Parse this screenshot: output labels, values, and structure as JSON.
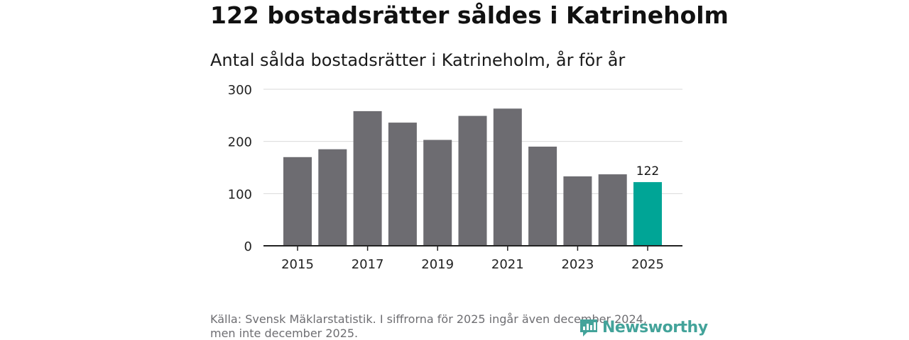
{
  "header": {
    "title": "122 bostadsrätter såldes i Katrineholm",
    "subtitle": "Antal sålda bostadsrätter i Katrineholm, år för år"
  },
  "footer": {
    "source_line1": "Källa: Svensk Mäklarstatistik. I siffrorna för 2025 ingår även december 2024,",
    "source_line2": "men inte december 2025.",
    "logo_text": "Newsworthy",
    "logo_icon": "newsworthy-logo-icon"
  },
  "colors": {
    "bar": "#6d6c71",
    "highlight": "#00a596",
    "grid": "#d9d9d9",
    "axis": "#222222",
    "logo": "#43a39a"
  },
  "chart_data": {
    "type": "bar",
    "title": "Antal sålda bostadsrätter i Katrineholm, år för år",
    "xlabel": "",
    "ylabel": "",
    "categories": [
      "2015",
      "2016",
      "2017",
      "2018",
      "2019",
      "2020",
      "2021",
      "2022",
      "2023",
      "2024",
      "2025"
    ],
    "values": [
      170,
      185,
      258,
      236,
      203,
      249,
      263,
      190,
      133,
      137,
      122
    ],
    "highlight_index": 10,
    "data_labels": [
      {
        "index": 10,
        "text": "122"
      }
    ],
    "x_tick_labels": [
      "2015",
      "2017",
      "2019",
      "2021",
      "2023",
      "2025"
    ],
    "y_ticks": [
      0,
      100,
      200,
      300
    ],
    "y_tick_labels": [
      "0",
      "100",
      "200",
      "300"
    ],
    "ylim": [
      0,
      300
    ],
    "grid": true
  }
}
